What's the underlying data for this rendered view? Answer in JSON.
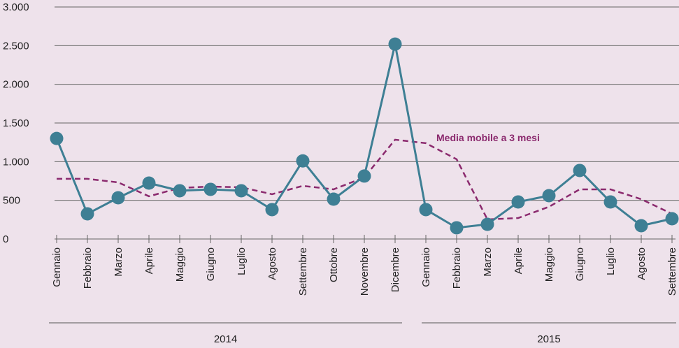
{
  "chart_data": {
    "type": "line",
    "categories": [
      "Gennaio",
      "Febbraio",
      "Marzo",
      "Aprile",
      "Maggio",
      "Giugno",
      "Luglio",
      "Agosto",
      "Settembre",
      "Ottobre",
      "Novembre",
      "Dicembre",
      "Gennaio",
      "Febbraio",
      "Marzo",
      "Aprile",
      "Maggio",
      "Giugno",
      "Luglio",
      "Agosto",
      "Settembre"
    ],
    "groups": [
      {
        "label": "2014",
        "count": 12
      },
      {
        "label": "2015",
        "count": 9
      }
    ],
    "series": [
      {
        "color": "#3e7f94",
        "marker": true,
        "dashed": false,
        "values": [
          1300,
          325,
          533,
          723,
          624,
          642,
          624,
          380,
          1010,
          515,
          814,
          2520,
          380,
          145,
          190,
          479,
          560,
          886,
          479,
          172,
          262
        ]
      },
      {
        "name": "Media mobile a 3 mesi",
        "color": "#8b2a6e",
        "marker": false,
        "dashed": true,
        "values": [
          778,
          778,
          732,
          552,
          660,
          678,
          669,
          579,
          687,
          642,
          796,
          1284,
          1239,
          1031,
          253,
          271,
          416,
          642,
          642,
          515,
          325
        ]
      }
    ],
    "ylim": [
      0,
      3000
    ],
    "yticks": [
      0,
      500,
      {
        "value": 1000,
        "label": "1.000"
      },
      {
        "value": 1500,
        "label": "1.500"
      },
      {
        "value": 2000,
        "label": "2.000"
      },
      {
        "value": 2500,
        "label": "2.500"
      },
      {
        "value": 3000,
        "label": "3.000"
      }
    ],
    "grid": true
  }
}
